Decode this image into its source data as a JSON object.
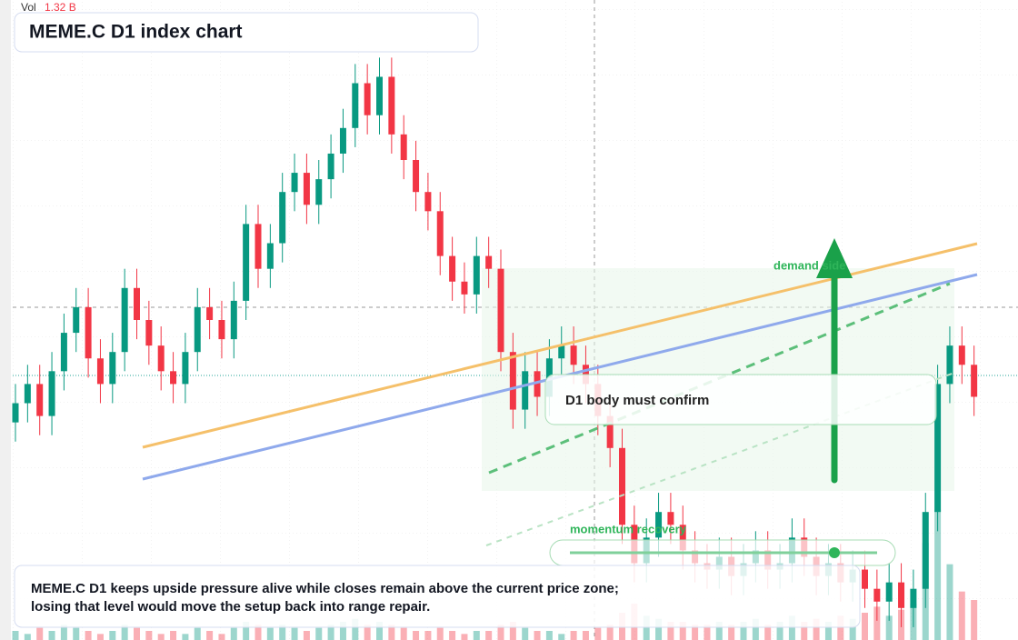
{
  "chart_data": {
    "type": "candlestick",
    "title": "MEME.C D1 index chart",
    "volume_readout": {
      "name": "Vol",
      "label": "1.32 B"
    },
    "ylim": [
      0,
      100
    ],
    "vlim": [
      0,
      6
    ],
    "up_color": "#089981",
    "down_color": "#f23645",
    "open": [
      34,
      37,
      40,
      35,
      42,
      48,
      52,
      44,
      40,
      45,
      55,
      50,
      46,
      42,
      40,
      45,
      52,
      50,
      47,
      53,
      65,
      58,
      62,
      70,
      73,
      68,
      72,
      76,
      80,
      87,
      82,
      88,
      79,
      75,
      70,
      67,
      60,
      56,
      54,
      60,
      58,
      45,
      36,
      42,
      38,
      44,
      46,
      43,
      40,
      35,
      30,
      18,
      12,
      16,
      20,
      18,
      14,
      12,
      11,
      13,
      10,
      12,
      14,
      11,
      12,
      16,
      13,
      10,
      12,
      9,
      11,
      8,
      6,
      9,
      5,
      8,
      20,
      40,
      46,
      43
    ],
    "high": [
      40,
      43,
      43,
      45,
      51,
      55,
      55,
      47,
      48,
      58,
      58,
      53,
      49,
      45,
      48,
      55,
      55,
      53,
      56,
      68,
      68,
      65,
      73,
      76,
      76,
      75,
      79,
      83,
      90,
      90,
      91,
      91,
      82,
      78,
      73,
      70,
      63,
      59,
      63,
      63,
      61,
      48,
      45,
      45,
      47,
      49,
      49,
      46,
      43,
      38,
      33,
      21,
      19,
      23,
      23,
      21,
      17,
      15,
      16,
      16,
      15,
      17,
      17,
      15,
      19,
      19,
      16,
      15,
      15,
      14,
      14,
      11,
      12,
      12,
      11,
      23,
      43,
      49,
      49,
      46
    ],
    "low": [
      31,
      34,
      32,
      32,
      39,
      45,
      41,
      37,
      37,
      42,
      47,
      43,
      39,
      37,
      37,
      42,
      47,
      44,
      44,
      50,
      55,
      55,
      59,
      67,
      65,
      65,
      69,
      73,
      77,
      79,
      79,
      76,
      72,
      67,
      64,
      57,
      53,
      51,
      51,
      55,
      42,
      33,
      33,
      35,
      35,
      41,
      40,
      37,
      32,
      27,
      15,
      9,
      9,
      13,
      15,
      11,
      9,
      8,
      8,
      7,
      7,
      9,
      8,
      8,
      9,
      10,
      7,
      7,
      6,
      6,
      5,
      3,
      3,
      2,
      2,
      5,
      17,
      37,
      40,
      35
    ],
    "close": [
      37,
      40,
      35,
      42,
      48,
      52,
      44,
      40,
      45,
      55,
      50,
      46,
      42,
      40,
      45,
      52,
      50,
      47,
      53,
      65,
      58,
      62,
      70,
      73,
      68,
      72,
      76,
      80,
      87,
      82,
      88,
      79,
      75,
      70,
      67,
      60,
      56,
      54,
      60,
      58,
      45,
      36,
      42,
      38,
      44,
      46,
      43,
      40,
      35,
      30,
      18,
      12,
      16,
      20,
      18,
      14,
      12,
      11,
      13,
      10,
      12,
      14,
      11,
      12,
      16,
      13,
      10,
      12,
      9,
      11,
      8,
      6,
      9,
      5,
      8,
      20,
      40,
      46,
      43,
      38
    ],
    "volume": [
      0.3,
      0.2,
      0.4,
      0.3,
      0.5,
      0.4,
      0.3,
      0.2,
      0.3,
      0.5,
      0.4,
      0.3,
      0.2,
      0.3,
      0.2,
      0.4,
      0.3,
      0.2,
      0.4,
      0.6,
      0.5,
      0.4,
      0.5,
      0.4,
      0.3,
      0.4,
      0.5,
      0.6,
      0.7,
      0.5,
      0.6,
      0.5,
      0.4,
      0.3,
      0.3,
      0.4,
      0.3,
      0.2,
      0.3,
      0.3,
      0.5,
      0.6,
      0.4,
      0.3,
      0.3,
      0.2,
      0.3,
      0.3,
      0.4,
      0.5,
      0.9,
      1.2,
      0.8,
      0.7,
      0.6,
      0.6,
      0.5,
      0.5,
      0.6,
      0.5,
      0.6,
      0.7,
      0.5,
      0.6,
      0.8,
      0.6,
      0.7,
      0.6,
      0.8,
      0.7,
      0.9,
      1.1,
      0.8,
      1.0,
      1.2,
      3.2,
      4.3,
      2.5,
      1.6,
      1.32
    ],
    "annotations": [
      "demand side",
      "D1 body must confirm",
      "momentum recovery"
    ],
    "caption": [
      "MEME.C D1 keeps upside pressure alive while closes remain above the current price zone;",
      "losing that level would move the setup back into range repair."
    ]
  }
}
